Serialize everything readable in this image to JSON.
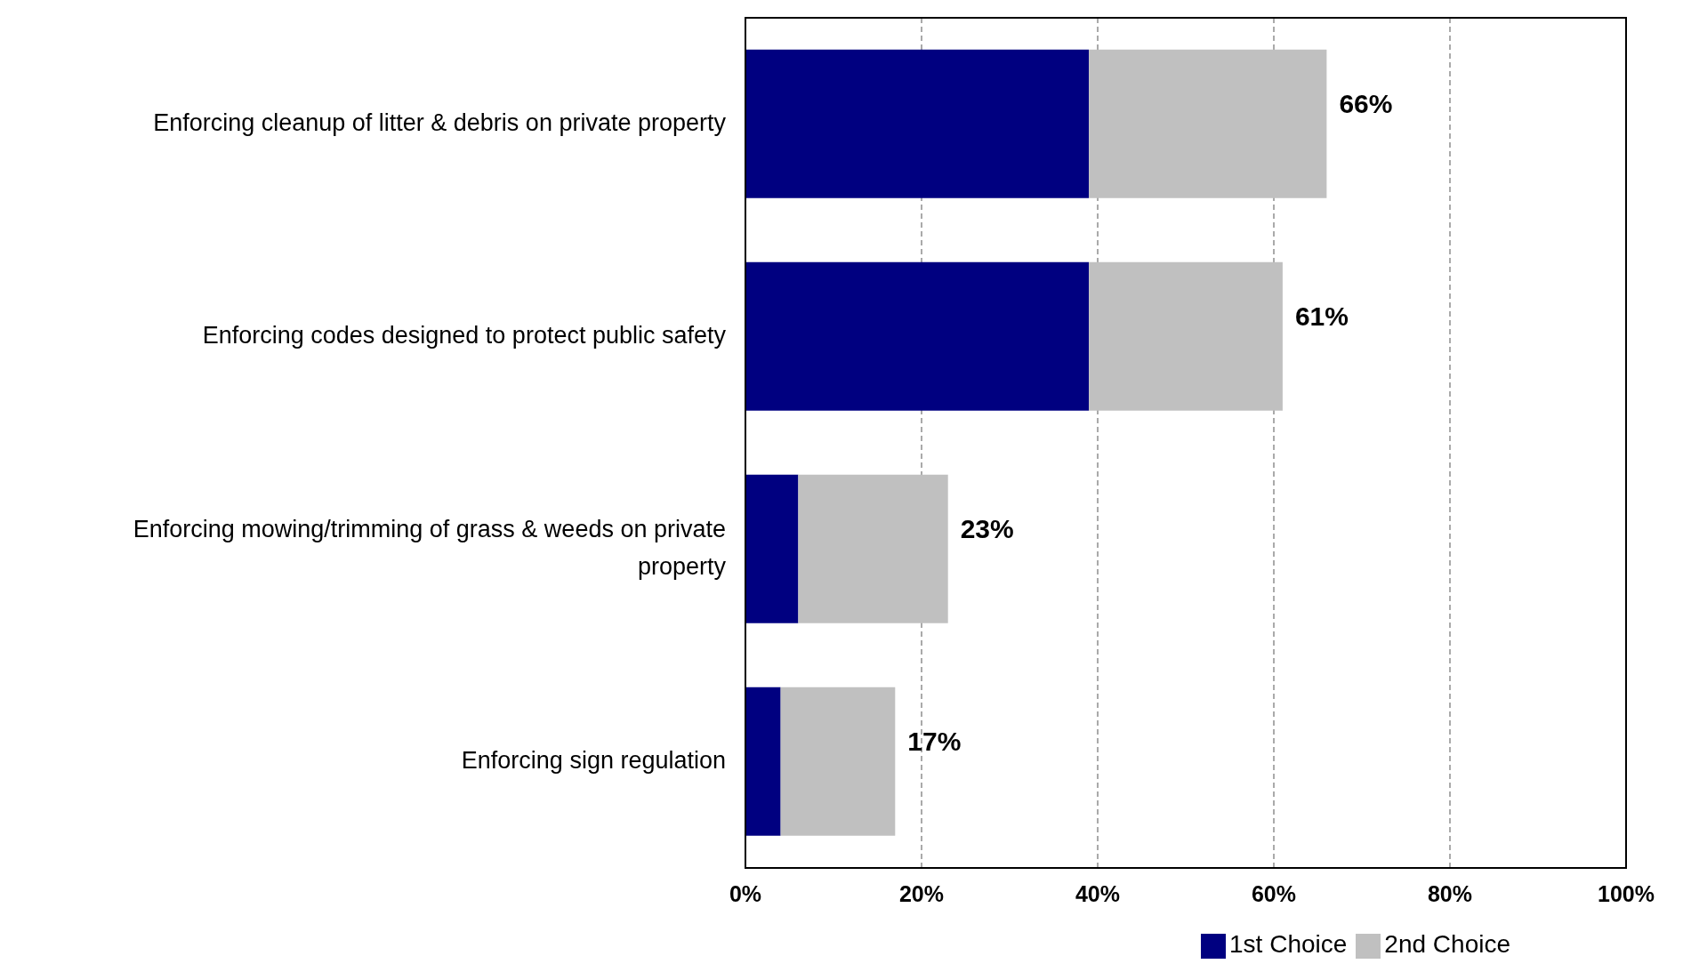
{
  "chart_data": {
    "type": "bar",
    "orientation": "horizontal",
    "stacked": true,
    "categories": [
      "Enforcing cleanup of litter & debris on private property",
      "Enforcing codes designed to protect public safety",
      "Enforcing mowing/trimming of grass & weeds on private property",
      "Enforcing sign regulation"
    ],
    "series": [
      {
        "name": "1st Choice",
        "color": "#000080",
        "values": [
          39,
          39,
          6,
          4
        ]
      },
      {
        "name": "2nd Choice",
        "color": "#c0c0c0",
        "values": [
          27,
          22,
          17,
          13
        ]
      }
    ],
    "totals": [
      "66%",
      "61%",
      "23%",
      "17%"
    ],
    "xlim": [
      0,
      100
    ],
    "xticks": [
      {
        "value": 0,
        "label": "0%"
      },
      {
        "value": 20,
        "label": "20%"
      },
      {
        "value": 40,
        "label": "40%"
      },
      {
        "value": 60,
        "label": "60%"
      },
      {
        "value": 80,
        "label": "80%"
      },
      {
        "value": 100,
        "label": "100%"
      }
    ],
    "grid": "x",
    "legend": "bottom"
  }
}
